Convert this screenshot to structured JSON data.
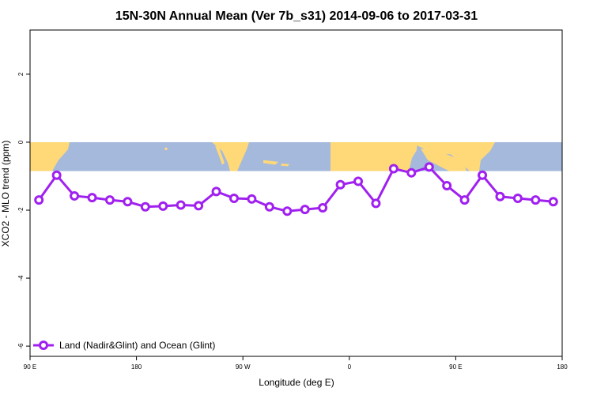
{
  "chart_data": {
    "type": "line",
    "title": "15N-30N Annual Mean (Ver 7b_s31)   2014-09-06 to 2017-03-31",
    "xlabel": "Longitude (deg E)",
    "ylabel": "XCO2 - MLO trend (ppm)",
    "xlim": [
      -90,
      180
    ],
    "ylim": [
      -6.3,
      3.3
    ],
    "xticks": [
      {
        "value": -90,
        "label": "90 E"
      },
      {
        "value": -36,
        "label": "180"
      },
      {
        "value": 18,
        "label": "90 W"
      },
      {
        "value": 72,
        "label": "0"
      },
      {
        "value": 126,
        "label": "90 E"
      },
      {
        "value": 180,
        "label": "180"
      }
    ],
    "yticks": [
      2,
      0,
      -2,
      -4,
      -6
    ],
    "grid": false,
    "legend_position": "bottom-left",
    "background_map": {
      "description": "world map band for 15N-30N",
      "y_range": [
        -0.85,
        0
      ],
      "ocean_color": "#a4b9dc",
      "land_color": "#ffd977"
    },
    "series": [
      {
        "name": "Land (Nadir&Glint) and Ocean (Glint)",
        "color": "#a020f0",
        "x": [
          -85.5,
          -76.5,
          -67.5,
          -58.5,
          -49.5,
          -40.5,
          -31.5,
          -22.5,
          -13.5,
          -4.5,
          4.5,
          13.5,
          22.5,
          31.5,
          40.5,
          49.5,
          58.5,
          67.5,
          76.5,
          85.5,
          94.5,
          103.5,
          112.5,
          121.5,
          130.5,
          139.5,
          148.5,
          157.5,
          166.5,
          175.5
        ],
        "y": [
          -1.7,
          -0.97,
          -1.58,
          -1.63,
          -1.7,
          -1.75,
          -1.9,
          -1.88,
          -1.85,
          -1.87,
          -1.45,
          -1.65,
          -1.67,
          -1.9,
          -2.03,
          -1.98,
          -1.93,
          -1.25,
          -1.15,
          -1.8,
          -0.78,
          -0.9,
          -0.73,
          -1.28,
          -1.7,
          -0.97,
          -1.6,
          -1.65,
          -1.7,
          -1.75
        ]
      }
    ]
  }
}
